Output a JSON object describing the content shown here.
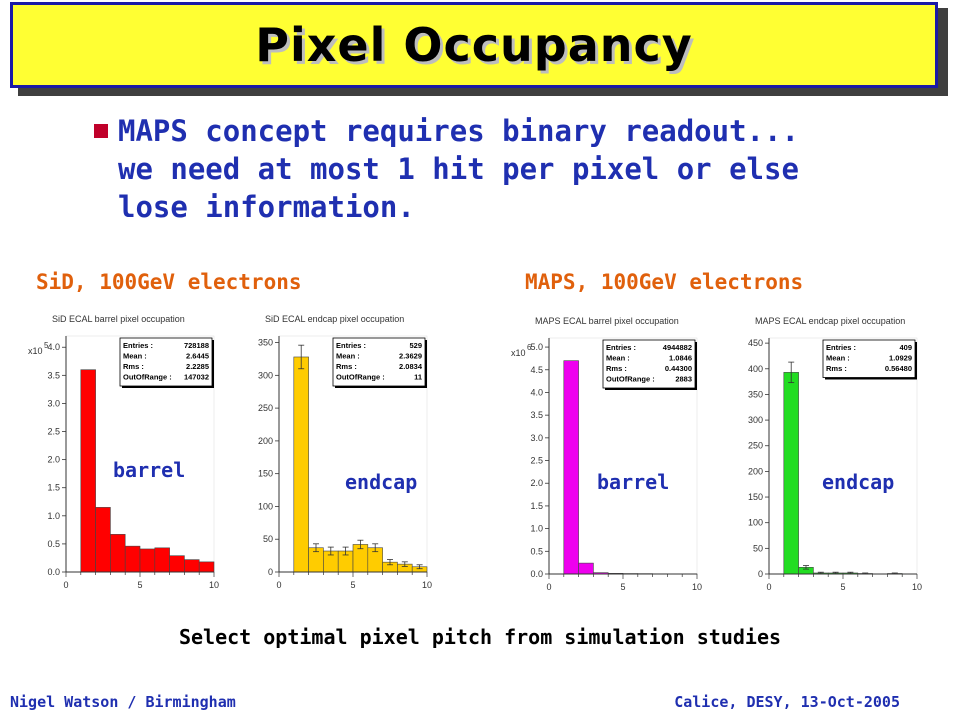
{
  "title": "Pixel Occupancy",
  "bullet": {
    "lines": [
      "MAPS concept requires binary readout...",
      "we need at most 1 hit per pixel or else",
      "lose information."
    ]
  },
  "groups": {
    "sid": "SiD, 100GeV electrons",
    "maps": "MAPS, 100GeV electrons"
  },
  "conclusion": "Select optimal pixel pitch from simulation studies",
  "footer": {
    "left": "Nigel Watson / Birmingham",
    "right": "Calice, DESY, 13-Oct-2005"
  },
  "colors": {
    "sid_barrel": "#ff0000",
    "sid_endcap": "#ffcc00",
    "maps_barrel": "#ee00ee",
    "maps_endcap": "#22dd22"
  },
  "chart_data": [
    {
      "type": "bar",
      "title": "SiD ECAL barrel pixel occupation",
      "region_label": "barrel",
      "y_multiplier": "x10",
      "y_exponent": "5",
      "x_ticks": [
        "0",
        "5",
        "10"
      ],
      "y_ticks": [
        "0.0",
        "0.5",
        "1.0",
        "1.5",
        "2.0",
        "2.5",
        "3.0",
        "3.5",
        "4.0"
      ],
      "xlim": [
        0,
        10
      ],
      "ylim": [
        0,
        4.2
      ],
      "bin_edges": [
        1,
        2,
        3,
        4,
        5,
        6,
        7,
        8,
        9,
        10
      ],
      "values": [
        3.6,
        1.15,
        0.67,
        0.46,
        0.41,
        0.43,
        0.29,
        0.22,
        0.18
      ],
      "stats": [
        [
          "Entries :",
          "728188"
        ],
        [
          "Mean :",
          "2.6445"
        ],
        [
          "Rms :",
          "2.2285"
        ],
        [
          "OutOfRange :",
          "147032"
        ]
      ]
    },
    {
      "type": "bar",
      "title": "SiD ECAL endcap pixel occupation",
      "region_label": "endcap",
      "x_ticks": [
        "0",
        "5",
        "10"
      ],
      "y_ticks": [
        "0",
        "50",
        "100",
        "150",
        "200",
        "250",
        "300",
        "350"
      ],
      "xlim": [
        0,
        10
      ],
      "ylim": [
        0,
        360
      ],
      "bin_edges": [
        1,
        2,
        3,
        4,
        5,
        6,
        7,
        8,
        9,
        10
      ],
      "values": [
        328,
        37,
        32,
        32,
        42,
        37,
        15,
        12,
        8
      ],
      "errors": [
        18,
        6,
        6,
        6,
        6.5,
        6,
        4,
        3.5,
        3
      ],
      "stats": [
        [
          "Entries :",
          "529"
        ],
        [
          "Mean :",
          "2.3629"
        ],
        [
          "Rms :",
          "2.0834"
        ],
        [
          "OutOfRange :",
          "11"
        ]
      ]
    },
    {
      "type": "bar",
      "title": "MAPS ECAL barrel pixel occupation",
      "region_label": "barrel",
      "y_multiplier": "x10",
      "y_exponent": "6",
      "x_ticks": [
        "0",
        "5",
        "10"
      ],
      "y_ticks": [
        "0.0",
        "0.5",
        "1.0",
        "1.5",
        "2.0",
        "2.5",
        "3.0",
        "3.5",
        "4.0",
        "4.5",
        "5.0"
      ],
      "xlim": [
        0,
        10
      ],
      "ylim": [
        0,
        5.2
      ],
      "bin_edges": [
        1,
        2,
        3,
        4,
        5,
        6,
        7,
        8,
        9,
        10
      ],
      "values": [
        4.7,
        0.24,
        0.03,
        0.015,
        0.01,
        0.008,
        0.005,
        0.004,
        0.003
      ],
      "stats": [
        [
          "Entries :",
          "4944882"
        ],
        [
          "Mean :",
          "1.0846"
        ],
        [
          "Rms :",
          "0.44300"
        ],
        [
          "OutOfRange :",
          "2883"
        ]
      ]
    },
    {
      "type": "bar",
      "title": "MAPS ECAL endcap pixel occupation",
      "region_label": "endcap",
      "x_ticks": [
        "0",
        "5",
        "10"
      ],
      "y_ticks": [
        "0",
        "50",
        "100",
        "150",
        "200",
        "250",
        "300",
        "350",
        "400",
        "450"
      ],
      "xlim": [
        0,
        10
      ],
      "ylim": [
        0,
        460
      ],
      "bin_edges": [
        1,
        2,
        3,
        4,
        5,
        6,
        7,
        8,
        9,
        10
      ],
      "values": [
        393,
        13,
        2,
        2,
        2,
        1,
        0,
        1,
        0
      ],
      "errors": [
        20,
        3.5,
        1.5,
        1.5,
        1.5,
        1,
        0,
        1,
        0
      ],
      "stats": [
        [
          "Entries :",
          "409"
        ],
        [
          "Mean :",
          "1.0929"
        ],
        [
          "Rms :",
          "0.56480"
        ]
      ]
    }
  ]
}
